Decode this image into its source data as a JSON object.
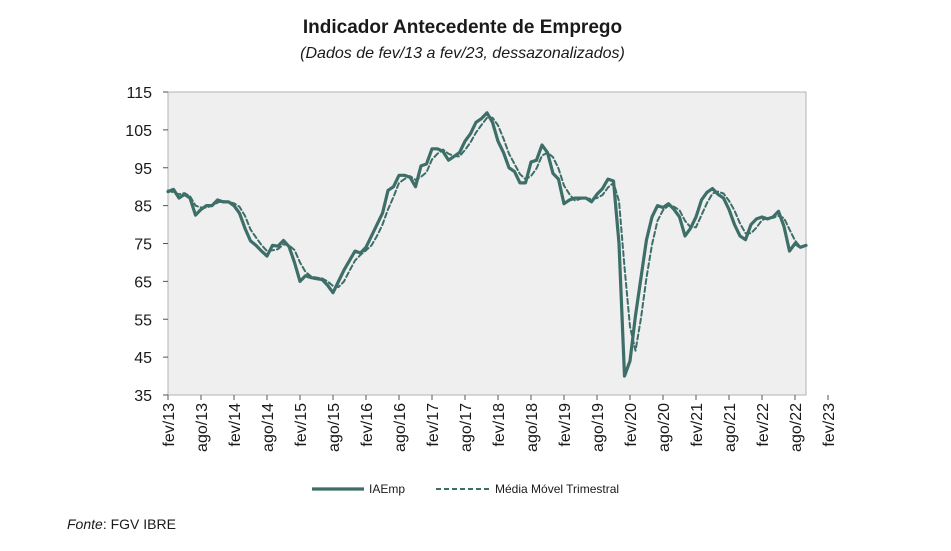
{
  "chart_data": {
    "type": "line",
    "title": "Indicador Antecedente de Emprego",
    "subtitle": "(Dados de fev/13 a fev/23, dessazonalizados)",
    "xlabel": "",
    "ylabel": "",
    "ylim": [
      35,
      115
    ],
    "yticks": [
      35,
      45,
      55,
      65,
      75,
      85,
      95,
      105,
      115
    ],
    "grid": false,
    "legend_position": "bottom",
    "xtick_labels": [
      "fev/13",
      "ago/13",
      "fev/14",
      "ago/14",
      "fev/15",
      "ago/15",
      "fev/16",
      "ago/16",
      "fev/17",
      "ago/17",
      "fev/18",
      "ago/18",
      "fev/19",
      "ago/19",
      "fev/20",
      "ago/20",
      "fev/21",
      "ago/21",
      "fev/22",
      "ago/22",
      "fev/23"
    ],
    "series": [
      {
        "name": "IAEmp",
        "style": "solid",
        "color": "#3d6e68",
        "values": [
          88.7,
          89.3,
          87.0,
          88.0,
          87.0,
          82.5,
          84.0,
          85.0,
          85.0,
          86.5,
          86.0,
          86.0,
          85.0,
          83.0,
          79.0,
          75.7,
          74.5,
          73.0,
          71.7,
          74.5,
          74.3,
          75.8,
          74.2,
          70.0,
          65.0,
          66.5,
          66.0,
          65.7,
          65.5,
          64.0,
          62.0,
          65.0,
          68.0,
          70.5,
          73.0,
          72.5,
          74.0,
          77.0,
          80.0,
          83.0,
          89.0,
          90.0,
          93.0,
          93.0,
          92.5,
          90.0,
          95.5,
          96.0,
          100.0,
          100.0,
          99.3,
          97.0,
          98.0,
          99.0,
          102.0,
          104.0,
          107.0,
          108.0,
          109.5,
          107.0,
          102.0,
          99.0,
          95.0,
          94.0,
          91.0,
          91.0,
          96.5,
          97.0,
          101.0,
          99.0,
          93.5,
          92.0,
          85.5,
          86.5,
          87.0,
          87.0,
          87.0,
          86.0,
          88.0,
          89.5,
          92.0,
          91.5,
          75.0,
          40.0,
          44.0,
          56.0,
          66.0,
          76.0,
          82.0,
          85.0,
          84.5,
          85.5,
          84.0,
          82.0,
          77.0,
          79.0,
          82.0,
          86.5,
          88.5,
          89.5,
          88.0,
          87.0,
          84.0,
          80.0,
          77.0,
          76.0,
          80.0,
          81.5,
          82.0,
          81.5,
          82.0,
          83.5,
          79.5,
          73.0,
          75.0,
          74.0,
          74.5
        ]
      },
      {
        "name": "Média Móvel Trimestral",
        "style": "dashed",
        "color": "#3d6e68",
        "values": [
          89.0,
          88.5,
          88.0,
          88.3,
          87.5,
          85.0,
          84.5,
          84.5,
          85.0,
          85.8,
          86.2,
          86.0,
          85.6,
          84.7,
          82.3,
          78.7,
          76.6,
          74.6,
          73.0,
          73.2,
          73.5,
          74.8,
          74.5,
          73.3,
          70.0,
          67.5,
          66.3,
          66.0,
          65.8,
          65.0,
          63.8,
          63.5,
          65.0,
          67.8,
          70.5,
          72.0,
          73.2,
          74.5,
          77.0,
          80.0,
          84.0,
          87.3,
          91.0,
          92.0,
          92.8,
          91.8,
          92.6,
          93.8,
          97.2,
          98.7,
          99.8,
          98.7,
          98.1,
          98.0,
          99.7,
          101.7,
          104.3,
          106.3,
          108.2,
          108.2,
          106.2,
          102.7,
          98.7,
          96.0,
          93.3,
          92.0,
          92.8,
          94.8,
          98.2,
          99.0,
          97.8,
          94.8,
          90.3,
          88.0,
          86.3,
          86.8,
          87.0,
          86.7,
          87.0,
          87.8,
          89.8,
          91.0,
          86.2,
          68.8,
          53.0,
          46.7,
          55.3,
          66.0,
          74.7,
          81.0,
          83.8,
          85.0,
          84.7,
          83.8,
          81.0,
          79.3,
          79.3,
          82.5,
          85.7,
          88.2,
          88.7,
          88.2,
          86.3,
          83.7,
          80.3,
          77.7,
          77.7,
          79.2,
          81.2,
          81.7,
          81.8,
          82.3,
          81.7,
          78.7,
          75.8,
          74.0,
          74.5
        ]
      }
    ]
  },
  "source": {
    "label": "Fonte",
    "text": ": FGV IBRE"
  }
}
